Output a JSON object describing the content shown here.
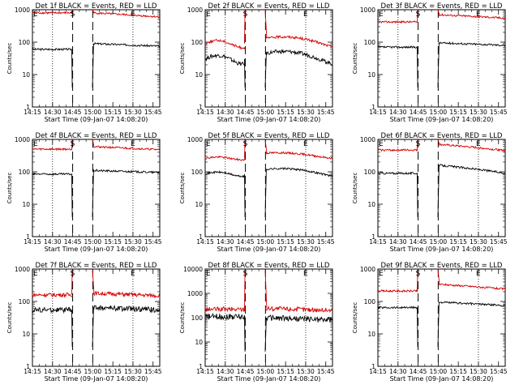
{
  "chart_data": [
    {
      "type": "line",
      "title": "Det 1f BLACK = Events, RED = LLD",
      "xlabel": "Start Time (09-Jan-07 14:08:20)",
      "ylabel": "Counts/sec",
      "log_y": true,
      "ylim": [
        1,
        1000
      ],
      "y_ticks": [
        "1",
        "10",
        "100",
        "1000"
      ],
      "x_tick_labels": [
        "14:15",
        "14:30",
        "14:45",
        "15:00",
        "15:15",
        "15:30",
        "15:45"
      ],
      "xlim_min": [
        6.67,
        101.67
      ],
      "markers": {
        "E_left": 6.67,
        "S": 36.67,
        "E_right": 81.67
      },
      "dashed_lines": [
        36.67,
        51.67
      ],
      "dotted_lines": [
        21.67,
        81.67
      ],
      "series": [
        {
          "name": "Events",
          "color": "#000000",
          "before": 60,
          "after": 90,
          "end": 75,
          "noise": 0.03,
          "bump": 0
        },
        {
          "name": "LLD",
          "color": "#d40000",
          "before": 800,
          "after": 800,
          "end": 600,
          "noise": 0.03,
          "bump": 0,
          "saturate": true
        }
      ]
    },
    {
      "type": "line",
      "title": "Det 2f BLACK = Events, RED = LLD",
      "xlabel": "Start Time (09-Jan-07 14:08:20)",
      "ylabel": "Counts/sec",
      "log_y": true,
      "ylim": [
        1,
        1000
      ],
      "y_ticks": [
        "1",
        "10",
        "100",
        "1000"
      ],
      "x_tick_labels": [
        "14:15",
        "14:30",
        "14:45",
        "15:00",
        "15:15",
        "15:30",
        "15:45"
      ],
      "xlim_min": [
        6.67,
        101.67
      ],
      "markers": {
        "E_left": 6.67,
        "S": 36.67,
        "E_right": 81.67
      },
      "dashed_lines": [
        36.67,
        51.67
      ],
      "dotted_lines": [
        21.67,
        81.67
      ],
      "series": [
        {
          "name": "Events",
          "color": "#000000",
          "before": 30,
          "after": 45,
          "end": 28,
          "noise": 0.06,
          "bump": 0.3
        },
        {
          "name": "LLD",
          "color": "#d40000",
          "before": 90,
          "after": 130,
          "end": 90,
          "noise": 0.04,
          "bump": 0.25
        }
      ]
    },
    {
      "type": "line",
      "title": "Det 3f BLACK = Events, RED = LLD",
      "xlabel": "Start Time (09-Jan-07 14:08:20)",
      "ylabel": "Counts/sec",
      "log_y": true,
      "ylim": [
        1,
        1000
      ],
      "y_ticks": [
        "1",
        "10",
        "100",
        "1000"
      ],
      "x_tick_labels": [
        "14:15",
        "14:30",
        "14:45",
        "15:00",
        "15:15",
        "15:30",
        "15:45"
      ],
      "xlim_min": [
        6.67,
        101.67
      ],
      "markers": {
        "E_left": 6.67,
        "S": 36.67,
        "E_right": 81.67
      },
      "dashed_lines": [
        36.67,
        51.67
      ],
      "dotted_lines": [
        21.67,
        81.67
      ],
      "series": [
        {
          "name": "Events",
          "color": "#000000",
          "before": 70,
          "after": 95,
          "end": 80,
          "noise": 0.03,
          "bump": 0
        },
        {
          "name": "LLD",
          "color": "#d40000",
          "before": 420,
          "after": 700,
          "end": 550,
          "noise": 0.03,
          "bump": 0
        }
      ]
    },
    {
      "type": "line",
      "title": "Det 4f BLACK = Events, RED = LLD",
      "xlabel": "Start Time (09-Jan-07 14:08:20)",
      "ylabel": "Counts/sec",
      "log_y": true,
      "ylim": [
        1,
        1000
      ],
      "y_ticks": [
        "1",
        "10",
        "100",
        "1000"
      ],
      "x_tick_labels": [
        "14:15",
        "14:30",
        "14:45",
        "15:00",
        "15:15",
        "15:30",
        "15:45"
      ],
      "xlim_min": [
        6.67,
        101.67
      ],
      "markers": {
        "E_left": 6.67,
        "S": 36.67,
        "E_right": 81.67
      },
      "dashed_lines": [
        36.67,
        51.67
      ],
      "dotted_lines": [
        21.67,
        81.67
      ],
      "series": [
        {
          "name": "Events",
          "color": "#000000",
          "before": 85,
          "after": 110,
          "end": 95,
          "noise": 0.03,
          "bump": 0
        },
        {
          "name": "LLD",
          "color": "#d40000",
          "before": 500,
          "after": 600,
          "end": 480,
          "noise": 0.03,
          "bump": 0
        }
      ]
    },
    {
      "type": "line",
      "title": "Det 5f BLACK = Events, RED = LLD",
      "xlabel": "Start Time (09-Jan-07 14:08:20)",
      "ylabel": "Counts/sec",
      "log_y": true,
      "ylim": [
        1,
        1000
      ],
      "y_ticks": [
        "1",
        "10",
        "100",
        "1000"
      ],
      "x_tick_labels": [
        "14:15",
        "14:30",
        "14:45",
        "15:00",
        "15:15",
        "15:30",
        "15:45"
      ],
      "xlim_min": [
        6.67,
        101.67
      ],
      "markers": {
        "E_left": 6.67,
        "S": 36.67,
        "E_right": 81.67
      },
      "dashed_lines": [
        36.67,
        51.67
      ],
      "dotted_lines": [
        21.67,
        81.67
      ],
      "series": [
        {
          "name": "Events",
          "color": "#000000",
          "before": 85,
          "after": 120,
          "end": 85,
          "noise": 0.03,
          "bump": 0.15
        },
        {
          "name": "LLD",
          "color": "#d40000",
          "before": 260,
          "after": 380,
          "end": 280,
          "noise": 0.03,
          "bump": 0.1
        }
      ]
    },
    {
      "type": "line",
      "title": "Det 6f BLACK = Events, RED = LLD",
      "xlabel": "Start Time (09-Jan-07 14:08:20)",
      "ylabel": "Counts/sec",
      "log_y": true,
      "ylim": [
        1,
        1000
      ],
      "y_ticks": [
        "1",
        "10",
        "100",
        "1000"
      ],
      "x_tick_labels": [
        "14:15",
        "14:30",
        "14:45",
        "15:00",
        "15:15",
        "15:30",
        "15:45"
      ],
      "xlim_min": [
        6.67,
        101.67
      ],
      "markers": {
        "E_left": 6.67,
        "S": 36.67,
        "E_right": 81.67
      },
      "dashed_lines": [
        36.67,
        51.67
      ],
      "dotted_lines": [
        21.67,
        81.67
      ],
      "series": [
        {
          "name": "Events",
          "color": "#000000",
          "before": 90,
          "after": 160,
          "end": 90,
          "noise": 0.03,
          "bump": 0
        },
        {
          "name": "LLD",
          "color": "#d40000",
          "before": 470,
          "after": 700,
          "end": 450,
          "noise": 0.03,
          "bump": 0
        }
      ]
    },
    {
      "type": "line",
      "title": "Det 7f BLACK = Events, RED = LLD",
      "xlabel": "Start Time (09-Jan-07 14:08:20)",
      "ylabel": "Counts/sec",
      "log_y": true,
      "ylim": [
        1,
        1000
      ],
      "y_ticks": [
        "1",
        "10",
        "100",
        "1000"
      ],
      "x_tick_labels": [
        "14:15",
        "14:30",
        "14:45",
        "15:00",
        "15:15",
        "15:30",
        "15:45"
      ],
      "xlim_min": [
        6.67,
        101.67
      ],
      "markers": {
        "E_left": 6.67,
        "S": 36.67,
        "E_right": 81.67
      },
      "dashed_lines": [
        36.67,
        51.67
      ],
      "dotted_lines": [
        21.67,
        81.67
      ],
      "series": [
        {
          "name": "Events",
          "color": "#000000",
          "before": 55,
          "after": 65,
          "end": 55,
          "noise": 0.08,
          "bump": 0
        },
        {
          "name": "LLD",
          "color": "#d40000",
          "before": 160,
          "after": 180,
          "end": 150,
          "noise": 0.06,
          "bump": 0
        }
      ]
    },
    {
      "type": "line",
      "title": "Det 8f BLACK = Events, RED = LLD",
      "xlabel": "Start Time (09-Jan-07 14:08:20)",
      "ylabel": "Counts/sec",
      "log_y": true,
      "ylim": [
        1,
        10000
      ],
      "y_ticks": [
        "1",
        "10",
        "100",
        "1000",
        "10000"
      ],
      "x_tick_labels": [
        "14:15",
        "14:30",
        "14:45",
        "15:00",
        "15:15",
        "15:30",
        "15:45"
      ],
      "xlim_min": [
        6.67,
        101.67
      ],
      "markers": {
        "E_left": 6.67,
        "S": 36.67,
        "E_right": 81.67
      },
      "dashed_lines": [
        36.67,
        51.67
      ],
      "dotted_lines": [
        21.67,
        81.67
      ],
      "series": [
        {
          "name": "Events",
          "color": "#000000",
          "before": 110,
          "after": 100,
          "end": 80,
          "noise": 0.12,
          "bump": 0
        },
        {
          "name": "LLD",
          "color": "#d40000",
          "before": 220,
          "after": 240,
          "end": 200,
          "noise": 0.1,
          "bump": 0,
          "peak": 10000
        }
      ]
    },
    {
      "type": "line",
      "title": "Det 9f BLACK = Events, RED = LLD",
      "xlabel": "Start Time (09-Jan-07 14:08:20)",
      "ylabel": "Counts/sec",
      "log_y": true,
      "ylim": [
        1,
        1000
      ],
      "y_ticks": [
        "1",
        "10",
        "100",
        "1000"
      ],
      "x_tick_labels": [
        "14:15",
        "14:30",
        "14:45",
        "15:00",
        "15:15",
        "15:30",
        "15:45"
      ],
      "xlim_min": [
        6.67,
        101.67
      ],
      "markers": {
        "E_left": 6.67,
        "S": 36.67,
        "E_right": 81.67
      },
      "dashed_lines": [
        36.67,
        51.67
      ],
      "dotted_lines": [
        21.67,
        81.67
      ],
      "series": [
        {
          "name": "Events",
          "color": "#000000",
          "before": 65,
          "after": 95,
          "end": 75,
          "noise": 0.03,
          "bump": 0
        },
        {
          "name": "LLD",
          "color": "#d40000",
          "before": 210,
          "after": 340,
          "end": 240,
          "noise": 0.03,
          "bump": 0
        }
      ]
    }
  ]
}
